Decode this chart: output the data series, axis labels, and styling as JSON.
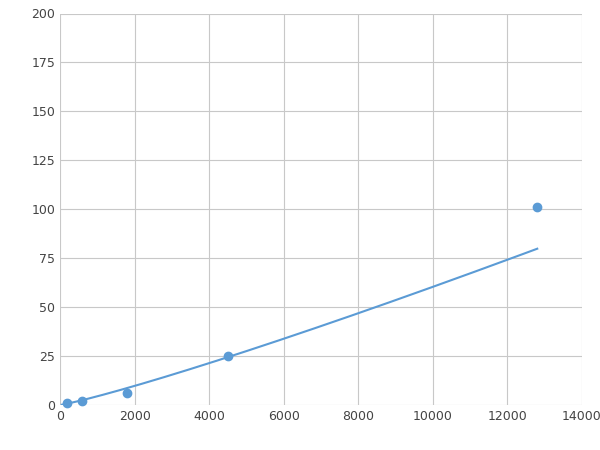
{
  "x": [
    200,
    600,
    1800,
    4500,
    12800
  ],
  "y": [
    1,
    2,
    6,
    25,
    101
  ],
  "line_color": "#5b9bd5",
  "marker_color": "#5b9bd5",
  "marker_size": 6,
  "xlim": [
    0,
    14000
  ],
  "ylim": [
    0,
    200
  ],
  "xticks": [
    0,
    2000,
    4000,
    6000,
    8000,
    10000,
    12000,
    14000
  ],
  "yticks": [
    0,
    25,
    50,
    75,
    100,
    125,
    150,
    175,
    200
  ],
  "grid_color": "#c8c8c8",
  "background_color": "#ffffff",
  "line_width": 1.5
}
